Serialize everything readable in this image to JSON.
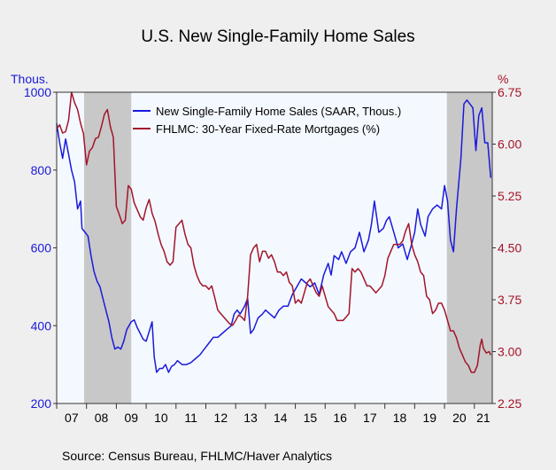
{
  "title": "U.S. New Single-Family Home Sales",
  "source": "Source: Census Bureau, FHLMC/Haver Analytics",
  "colors": {
    "background": "#efefef",
    "plot_bg": "#f4f9ff",
    "recession": "#c8c8c8",
    "home_sales": "#1a1adb",
    "mortgage": "#a3142a",
    "axis": "#333333"
  },
  "chart_data": {
    "type": "line",
    "title": "U.S. New Single-Family Home Sales",
    "x_start": 2007.0,
    "x_end": 2021.6,
    "x_ticks": [
      {
        "label": "07",
        "value": 2007.5
      },
      {
        "label": "08",
        "value": 2008.5
      },
      {
        "label": "09",
        "value": 2009.5
      },
      {
        "label": "10",
        "value": 2010.5
      },
      {
        "label": "11",
        "value": 2011.5
      },
      {
        "label": "12",
        "value": 2012.5
      },
      {
        "label": "13",
        "value": 2013.5
      },
      {
        "label": "14",
        "value": 2014.5
      },
      {
        "label": "15",
        "value": 2015.5
      },
      {
        "label": "16",
        "value": 2016.5
      },
      {
        "label": "17",
        "value": 2017.5
      },
      {
        "label": "18",
        "value": 2018.5
      },
      {
        "label": "19",
        "value": 2019.5
      },
      {
        "label": "20",
        "value": 2020.5
      },
      {
        "label": "21",
        "value": 2021.3
      }
    ],
    "y_left": {
      "label": "Thous.",
      "min": 200,
      "max": 1000,
      "ticks": [
        "1000",
        "800",
        "600",
        "400",
        "200"
      ]
    },
    "y_right": {
      "label": "%",
      "min": 2.25,
      "max": 6.75,
      "ticks": [
        "6.75",
        "6.00",
        "5.25",
        "4.50",
        "3.75",
        "3.00",
        "2.25"
      ]
    },
    "recessions": [
      [
        2007.92,
        2009.5
      ],
      [
        2020.08,
        2021.6
      ]
    ],
    "legend_position": "top-center",
    "series": [
      {
        "name": "New Single-Family Home Sales (SAAR, Thous.)",
        "axis": "left",
        "color": "#1a1adb",
        "points": [
          [
            2007.0,
            920
          ],
          [
            2007.1,
            870
          ],
          [
            2007.2,
            830
          ],
          [
            2007.3,
            880
          ],
          [
            2007.4,
            840
          ],
          [
            2007.5,
            800
          ],
          [
            2007.6,
            770
          ],
          [
            2007.7,
            700
          ],
          [
            2007.8,
            720
          ],
          [
            2007.85,
            650
          ],
          [
            2007.95,
            640
          ],
          [
            2008.05,
            630
          ],
          [
            2008.15,
            580
          ],
          [
            2008.25,
            540
          ],
          [
            2008.35,
            515
          ],
          [
            2008.45,
            500
          ],
          [
            2008.55,
            470
          ],
          [
            2008.65,
            440
          ],
          [
            2008.75,
            410
          ],
          [
            2008.85,
            370
          ],
          [
            2008.95,
            340
          ],
          [
            2009.05,
            345
          ],
          [
            2009.15,
            340
          ],
          [
            2009.25,
            360
          ],
          [
            2009.35,
            390
          ],
          [
            2009.5,
            410
          ],
          [
            2009.6,
            415
          ],
          [
            2009.7,
            395
          ],
          [
            2009.8,
            380
          ],
          [
            2009.9,
            365
          ],
          [
            2010.0,
            360
          ],
          [
            2010.1,
            385
          ],
          [
            2010.2,
            410
          ],
          [
            2010.27,
            320
          ],
          [
            2010.35,
            280
          ],
          [
            2010.45,
            290
          ],
          [
            2010.55,
            290
          ],
          [
            2010.65,
            300
          ],
          [
            2010.75,
            280
          ],
          [
            2010.85,
            295
          ],
          [
            2010.95,
            300
          ],
          [
            2011.05,
            310
          ],
          [
            2011.2,
            300
          ],
          [
            2011.35,
            300
          ],
          [
            2011.5,
            305
          ],
          [
            2011.65,
            315
          ],
          [
            2011.8,
            325
          ],
          [
            2011.95,
            340
          ],
          [
            2012.1,
            355
          ],
          [
            2012.25,
            370
          ],
          [
            2012.4,
            370
          ],
          [
            2012.55,
            380
          ],
          [
            2012.7,
            390
          ],
          [
            2012.85,
            400
          ],
          [
            2012.95,
            430
          ],
          [
            2013.05,
            440
          ],
          [
            2013.15,
            430
          ],
          [
            2013.3,
            450
          ],
          [
            2013.4,
            470
          ],
          [
            2013.5,
            380
          ],
          [
            2013.6,
            390
          ],
          [
            2013.75,
            420
          ],
          [
            2013.9,
            430
          ],
          [
            2014.0,
            440
          ],
          [
            2014.15,
            430
          ],
          [
            2014.3,
            420
          ],
          [
            2014.45,
            440
          ],
          [
            2014.6,
            450
          ],
          [
            2014.75,
            450
          ],
          [
            2014.9,
            480
          ],
          [
            2015.05,
            500
          ],
          [
            2015.2,
            520
          ],
          [
            2015.35,
            510
          ],
          [
            2015.5,
            500
          ],
          [
            2015.65,
            510
          ],
          [
            2015.8,
            480
          ],
          [
            2015.95,
            530
          ],
          [
            2016.1,
            560
          ],
          [
            2016.2,
            530
          ],
          [
            2016.3,
            580
          ],
          [
            2016.45,
            570
          ],
          [
            2016.55,
            590
          ],
          [
            2016.7,
            560
          ],
          [
            2016.85,
            590
          ],
          [
            2017.0,
            600
          ],
          [
            2017.15,
            640
          ],
          [
            2017.3,
            590
          ],
          [
            2017.45,
            620
          ],
          [
            2017.55,
            660
          ],
          [
            2017.65,
            720
          ],
          [
            2017.8,
            640
          ],
          [
            2017.95,
            650
          ],
          [
            2018.05,
            670
          ],
          [
            2018.15,
            680
          ],
          [
            2018.3,
            640
          ],
          [
            2018.45,
            600
          ],
          [
            2018.6,
            610
          ],
          [
            2018.75,
            570
          ],
          [
            2018.9,
            610
          ],
          [
            2019.0,
            640
          ],
          [
            2019.1,
            700
          ],
          [
            2019.2,
            660
          ],
          [
            2019.35,
            630
          ],
          [
            2019.45,
            680
          ],
          [
            2019.6,
            700
          ],
          [
            2019.75,
            710
          ],
          [
            2019.9,
            700
          ],
          [
            2020.0,
            760
          ],
          [
            2020.1,
            720
          ],
          [
            2020.2,
            620
          ],
          [
            2020.3,
            590
          ],
          [
            2020.4,
            700
          ],
          [
            2020.55,
            830
          ],
          [
            2020.65,
            970
          ],
          [
            2020.75,
            980
          ],
          [
            2020.85,
            970
          ],
          [
            2020.95,
            960
          ],
          [
            2021.05,
            850
          ],
          [
            2021.15,
            940
          ],
          [
            2021.25,
            960
          ],
          [
            2021.35,
            870
          ],
          [
            2021.45,
            870
          ],
          [
            2021.55,
            780
          ]
        ]
      },
      {
        "name": "FHLMC: 30-Year Fixed-Rate Mortgages (%)",
        "axis": "right",
        "color": "#a3142a",
        "points": [
          [
            2007.0,
            6.22
          ],
          [
            2007.1,
            6.28
          ],
          [
            2007.2,
            6.16
          ],
          [
            2007.3,
            6.18
          ],
          [
            2007.4,
            6.35
          ],
          [
            2007.5,
            6.75
          ],
          [
            2007.6,
            6.6
          ],
          [
            2007.7,
            6.5
          ],
          [
            2007.8,
            6.3
          ],
          [
            2007.9,
            6.15
          ],
          [
            2008.0,
            5.7
          ],
          [
            2008.1,
            5.9
          ],
          [
            2008.2,
            5.95
          ],
          [
            2008.3,
            6.08
          ],
          [
            2008.4,
            6.1
          ],
          [
            2008.5,
            6.25
          ],
          [
            2008.6,
            6.43
          ],
          [
            2008.7,
            6.5
          ],
          [
            2008.8,
            6.25
          ],
          [
            2008.9,
            6.1
          ],
          [
            2009.0,
            5.1
          ],
          [
            2009.1,
            4.98
          ],
          [
            2009.2,
            4.85
          ],
          [
            2009.3,
            4.9
          ],
          [
            2009.4,
            5.4
          ],
          [
            2009.5,
            5.35
          ],
          [
            2009.6,
            5.15
          ],
          [
            2009.7,
            5.05
          ],
          [
            2009.8,
            4.95
          ],
          [
            2009.9,
            4.9
          ],
          [
            2010.0,
            5.08
          ],
          [
            2010.1,
            5.2
          ],
          [
            2010.2,
            5.0
          ],
          [
            2010.3,
            4.88
          ],
          [
            2010.4,
            4.7
          ],
          [
            2010.5,
            4.55
          ],
          [
            2010.6,
            4.45
          ],
          [
            2010.7,
            4.3
          ],
          [
            2010.8,
            4.25
          ],
          [
            2010.9,
            4.3
          ],
          [
            2011.0,
            4.8
          ],
          [
            2011.1,
            4.85
          ],
          [
            2011.2,
            4.9
          ],
          [
            2011.3,
            4.7
          ],
          [
            2011.4,
            4.55
          ],
          [
            2011.5,
            4.5
          ],
          [
            2011.6,
            4.25
          ],
          [
            2011.7,
            4.1
          ],
          [
            2011.8,
            4.0
          ],
          [
            2011.9,
            3.95
          ],
          [
            2012.0,
            3.95
          ],
          [
            2012.1,
            3.9
          ],
          [
            2012.2,
            3.95
          ],
          [
            2012.3,
            3.78
          ],
          [
            2012.4,
            3.6
          ],
          [
            2012.5,
            3.55
          ],
          [
            2012.6,
            3.5
          ],
          [
            2012.7,
            3.45
          ],
          [
            2012.8,
            3.4
          ],
          [
            2012.9,
            3.38
          ],
          [
            2013.0,
            3.45
          ],
          [
            2013.1,
            3.53
          ],
          [
            2013.2,
            3.5
          ],
          [
            2013.3,
            3.45
          ],
          [
            2013.4,
            3.8
          ],
          [
            2013.5,
            4.4
          ],
          [
            2013.6,
            4.5
          ],
          [
            2013.7,
            4.55
          ],
          [
            2013.8,
            4.3
          ],
          [
            2013.9,
            4.45
          ],
          [
            2014.0,
            4.45
          ],
          [
            2014.1,
            4.35
          ],
          [
            2014.2,
            4.4
          ],
          [
            2014.3,
            4.3
          ],
          [
            2014.4,
            4.15
          ],
          [
            2014.5,
            4.15
          ],
          [
            2014.6,
            4.1
          ],
          [
            2014.7,
            4.15
          ],
          [
            2014.8,
            4.0
          ],
          [
            2014.9,
            3.95
          ],
          [
            2015.0,
            3.7
          ],
          [
            2015.1,
            3.75
          ],
          [
            2015.2,
            3.7
          ],
          [
            2015.3,
            3.85
          ],
          [
            2015.4,
            4.0
          ],
          [
            2015.5,
            4.05
          ],
          [
            2015.6,
            3.95
          ],
          [
            2015.7,
            3.85
          ],
          [
            2015.8,
            3.8
          ],
          [
            2015.9,
            3.95
          ],
          [
            2016.0,
            3.8
          ],
          [
            2016.1,
            3.65
          ],
          [
            2016.2,
            3.6
          ],
          [
            2016.3,
            3.55
          ],
          [
            2016.4,
            3.45
          ],
          [
            2016.5,
            3.45
          ],
          [
            2016.6,
            3.45
          ],
          [
            2016.7,
            3.5
          ],
          [
            2016.8,
            3.55
          ],
          [
            2016.9,
            4.2
          ],
          [
            2017.0,
            4.15
          ],
          [
            2017.1,
            4.2
          ],
          [
            2017.2,
            4.15
          ],
          [
            2017.3,
            4.05
          ],
          [
            2017.4,
            3.95
          ],
          [
            2017.5,
            3.95
          ],
          [
            2017.6,
            3.9
          ],
          [
            2017.7,
            3.85
          ],
          [
            2017.8,
            3.9
          ],
          [
            2017.9,
            3.95
          ],
          [
            2018.0,
            4.1
          ],
          [
            2018.1,
            4.35
          ],
          [
            2018.2,
            4.45
          ],
          [
            2018.3,
            4.55
          ],
          [
            2018.4,
            4.55
          ],
          [
            2018.5,
            4.55
          ],
          [
            2018.6,
            4.6
          ],
          [
            2018.7,
            4.75
          ],
          [
            2018.8,
            4.85
          ],
          [
            2018.9,
            4.55
          ],
          [
            2019.0,
            4.4
          ],
          [
            2019.1,
            4.3
          ],
          [
            2019.2,
            4.15
          ],
          [
            2019.3,
            4.1
          ],
          [
            2019.4,
            3.8
          ],
          [
            2019.5,
            3.75
          ],
          [
            2019.6,
            3.55
          ],
          [
            2019.7,
            3.6
          ],
          [
            2019.8,
            3.7
          ],
          [
            2019.9,
            3.7
          ],
          [
            2020.0,
            3.6
          ],
          [
            2020.1,
            3.45
          ],
          [
            2020.2,
            3.3
          ],
          [
            2020.3,
            3.3
          ],
          [
            2020.4,
            3.2
          ],
          [
            2020.5,
            3.05
          ],
          [
            2020.6,
            2.95
          ],
          [
            2020.7,
            2.85
          ],
          [
            2020.8,
            2.8
          ],
          [
            2020.9,
            2.7
          ],
          [
            2021.0,
            2.7
          ],
          [
            2021.1,
            2.8
          ],
          [
            2021.2,
            3.1
          ],
          [
            2021.25,
            3.18
          ],
          [
            2021.3,
            3.05
          ],
          [
            2021.4,
            2.98
          ],
          [
            2021.5,
            3.0
          ],
          [
            2021.55,
            2.95
          ]
        ]
      }
    ]
  }
}
